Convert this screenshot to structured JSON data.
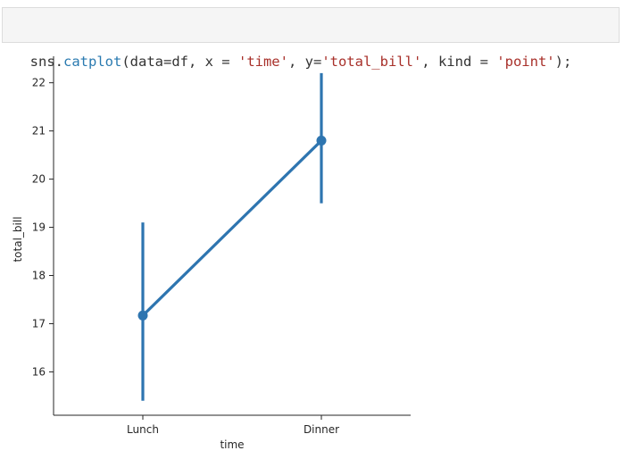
{
  "code_cell": {
    "tokens": [
      {
        "text": "sns.",
        "cls": ""
      },
      {
        "text": "catplot",
        "cls": "kw-fn"
      },
      {
        "text": "(data=df, x = ",
        "cls": ""
      },
      {
        "text": "'time'",
        "cls": "str"
      },
      {
        "text": ", y=",
        "cls": ""
      },
      {
        "text": "'total_bill'",
        "cls": "str"
      },
      {
        "text": ", kind = ",
        "cls": ""
      },
      {
        "text": "'point'",
        "cls": "str"
      },
      {
        "text": ");",
        "cls": ""
      }
    ]
  },
  "chart_data": {
    "type": "line",
    "kind": "point",
    "xlabel": "time",
    "ylabel": "total_bill",
    "categories": [
      "Lunch",
      "Dinner"
    ],
    "values": [
      17.17,
      20.8
    ],
    "ci_low": [
      15.4,
      19.5
    ],
    "ci_high": [
      19.1,
      22.2
    ],
    "ylim": [
      15.1,
      22.55
    ],
    "yticks": [
      16,
      17,
      18,
      19,
      20,
      21,
      22
    ],
    "color": "#2e75b0",
    "grid": false
  }
}
